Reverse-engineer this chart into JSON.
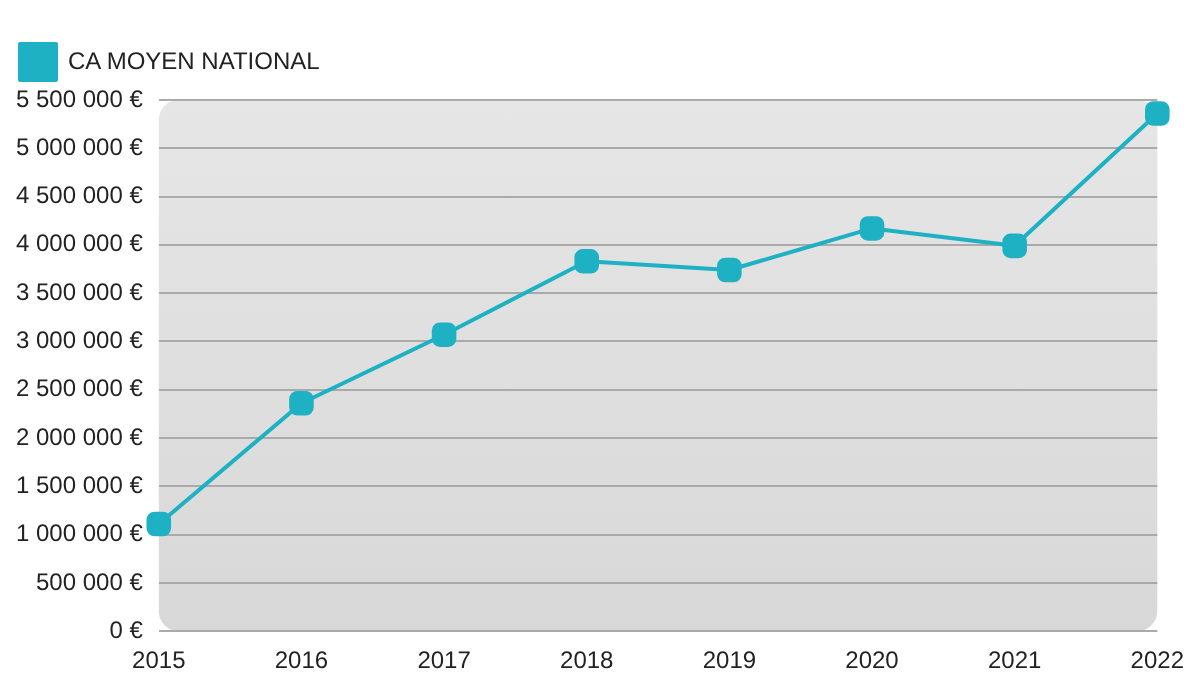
{
  "chart_data": {
    "type": "line",
    "categories": [
      "2015",
      "2016",
      "2017",
      "2018",
      "2019",
      "2020",
      "2021",
      "2022"
    ],
    "series": [
      {
        "name": "CA MOYEN NATIONAL",
        "color": "#1eb1c3",
        "values": [
          1110000,
          2360000,
          3070000,
          3830000,
          3740000,
          4170000,
          3990000,
          5360000
        ]
      }
    ],
    "ylim": [
      0,
      5500000
    ],
    "yticks": [
      {
        "value": 0,
        "label": "0 €"
      },
      {
        "value": 500000,
        "label": "500 000 €"
      },
      {
        "value": 1000000,
        "label": "1 000 000 €"
      },
      {
        "value": 1500000,
        "label": "1 500 000 €"
      },
      {
        "value": 2000000,
        "label": "2 000 000 €"
      },
      {
        "value": 2500000,
        "label": "2 500 000 €"
      },
      {
        "value": 3000000,
        "label": "3 000 000 €"
      },
      {
        "value": 3500000,
        "label": "3 500 000 €"
      },
      {
        "value": 4000000,
        "label": "4 000 000 €"
      },
      {
        "value": 4500000,
        "label": "4 500 000 €"
      },
      {
        "value": 5000000,
        "label": "5 000 000 €"
      },
      {
        "value": 5500000,
        "label": "5 500 000 €"
      }
    ],
    "grid": "y",
    "legend": "top left",
    "marker": "square",
    "line_style": "solid"
  }
}
